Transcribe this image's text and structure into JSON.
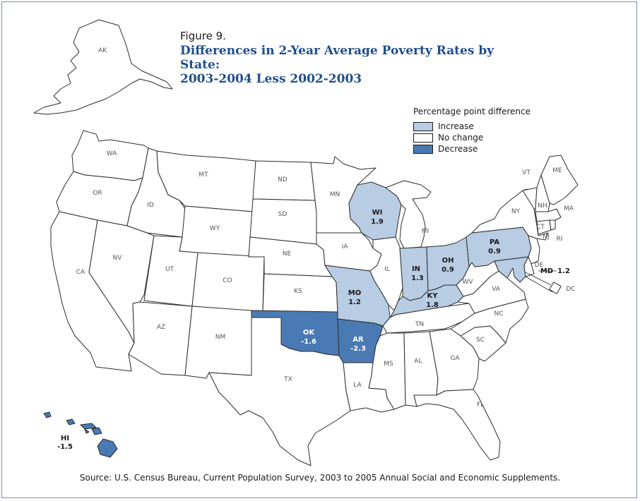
{
  "figure_label": "Figure 9.",
  "title_line1": "Differences in 2-Year Average Poverty Rates by State:",
  "title_line2": "2003-2004 Less 2002-2003",
  "legend": {
    "title": "Percentage point difference",
    "items": [
      {
        "label": "Increase",
        "color": "#b8cce4"
      },
      {
        "label": "No change",
        "color": "#ffffff"
      },
      {
        "label": "Decrease",
        "color": "#4a7ab4"
      }
    ]
  },
  "colors": {
    "increase": "#b8cce4",
    "no_change": "#ffffff",
    "decrease": "#4a7ab4",
    "border": "#2b2b2b"
  },
  "states": {
    "AK": {
      "abbr": "AK"
    },
    "WA": {
      "abbr": "WA"
    },
    "OR": {
      "abbr": "OR"
    },
    "CA": {
      "abbr": "CA"
    },
    "ID": {
      "abbr": "ID"
    },
    "NV": {
      "abbr": "NV"
    },
    "MT": {
      "abbr": "MT"
    },
    "WY": {
      "abbr": "WY"
    },
    "UT": {
      "abbr": "UT"
    },
    "AZ": {
      "abbr": "AZ"
    },
    "CO": {
      "abbr": "CO"
    },
    "NM": {
      "abbr": "NM"
    },
    "ND": {
      "abbr": "ND"
    },
    "SD": {
      "abbr": "SD"
    },
    "NE": {
      "abbr": "NE"
    },
    "KS": {
      "abbr": "KS"
    },
    "TX": {
      "abbr": "TX"
    },
    "MN": {
      "abbr": "MN"
    },
    "IA": {
      "abbr": "IA"
    },
    "IL": {
      "abbr": "IL"
    },
    "MI": {
      "abbr": "MI"
    },
    "LA": {
      "abbr": "LA"
    },
    "MS": {
      "abbr": "MS"
    },
    "AL": {
      "abbr": "AL"
    },
    "TN": {
      "abbr": "TN"
    },
    "GA": {
      "abbr": "GA"
    },
    "FL": {
      "abbr": "FL"
    },
    "SC": {
      "abbr": "SC"
    },
    "NC": {
      "abbr": "NC"
    },
    "VA": {
      "abbr": "VA"
    },
    "WV": {
      "abbr": "WV"
    },
    "NY": {
      "abbr": "NY"
    },
    "VT": {
      "abbr": "VT"
    },
    "NH": {
      "abbr": "NH"
    },
    "ME": {
      "abbr": "ME"
    },
    "MA": {
      "abbr": "MA"
    },
    "CT": {
      "abbr": "CT"
    },
    "RI": {
      "abbr": "RI"
    },
    "NJ": {
      "abbr": "NJ"
    },
    "DE": {
      "abbr": "DE"
    },
    "DC": {
      "abbr": "DC"
    },
    "WI": {
      "abbr": "WI",
      "value": "1.9",
      "change": "increase"
    },
    "MO": {
      "abbr": "MO",
      "value": "1.2",
      "change": "increase"
    },
    "IN": {
      "abbr": "IN",
      "value": "1.3",
      "change": "increase"
    },
    "OH": {
      "abbr": "OH",
      "value": "0.9",
      "change": "increase"
    },
    "KY": {
      "abbr": "KY",
      "value": "1.8",
      "change": "increase"
    },
    "PA": {
      "abbr": "PA",
      "value": "0.9",
      "change": "increase"
    },
    "MD": {
      "abbr": "MD",
      "value": "1.2",
      "change": "increase"
    },
    "OK": {
      "abbr": "OK",
      "value": "-1.6",
      "change": "decrease"
    },
    "AR": {
      "abbr": "AR",
      "value": "-2.3",
      "change": "decrease"
    },
    "HI": {
      "abbr": "HI",
      "value": "-1.5",
      "change": "decrease"
    }
  },
  "source": "Source:  U.S. Census Bureau, Current Population Survey, 2003 to 2005 Annual Social and Economic Supplements."
}
